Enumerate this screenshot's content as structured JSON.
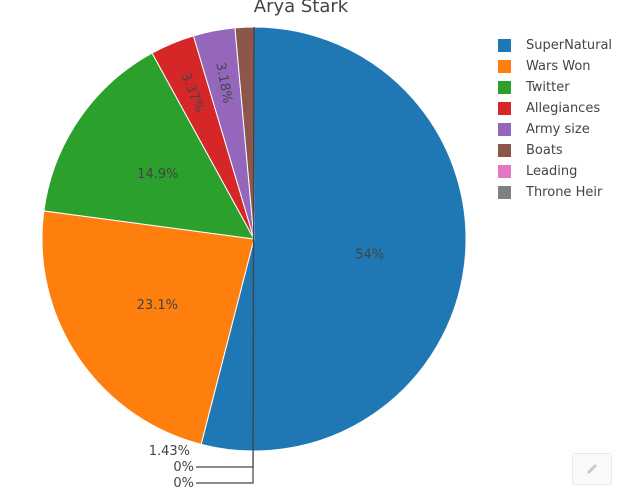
{
  "chart_data": {
    "type": "pie",
    "title": "Arya Stark",
    "slices": [
      {
        "label": "SuperNatural",
        "value": 54,
        "text": "54%",
        "color": "#1f77b4"
      },
      {
        "label": "Wars Won",
        "value": 23.1,
        "text": "23.1%",
        "color": "#ff7f0e"
      },
      {
        "label": "Twitter",
        "value": 14.9,
        "text": "14.9%",
        "color": "#2ca02c"
      },
      {
        "label": "Allegiances",
        "value": 3.37,
        "text": "3.37%",
        "color": "#d62728"
      },
      {
        "label": "Army size",
        "value": 3.18,
        "text": "3.18%",
        "color": "#9467bd"
      },
      {
        "label": "Boats",
        "value": 1.43,
        "text": "1.43%",
        "color": "#8c564b"
      },
      {
        "label": "Leading",
        "value": 0,
        "text": "0%",
        "color": "#e377c2"
      },
      {
        "label": "Throne Heir",
        "value": 0,
        "text": "0%",
        "color": "#7f7f7f"
      }
    ],
    "legend_position": "top-right"
  },
  "toolbar": {
    "icon": "pencil-icon"
  }
}
